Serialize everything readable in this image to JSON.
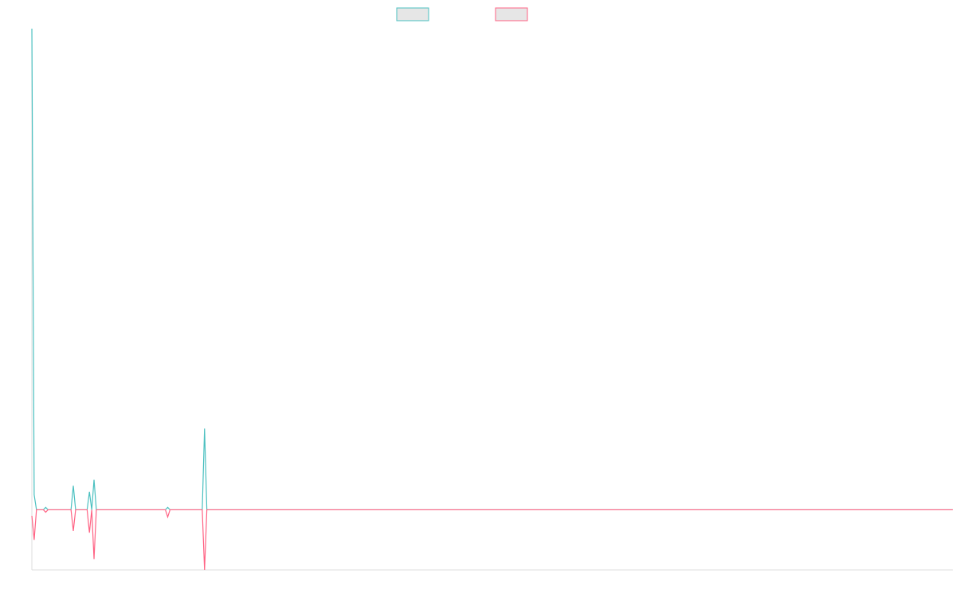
{
  "chart_data": {
    "type": "line",
    "title": "",
    "xlabel": "",
    "ylabel": "",
    "grid": false,
    "legend": "top-center",
    "x": [
      0,
      1,
      2,
      3,
      4,
      5,
      6,
      7,
      8,
      9,
      10,
      11,
      12,
      13,
      14,
      15,
      16,
      17,
      18,
      19,
      20,
      21,
      22,
      23,
      24,
      25,
      26,
      27,
      28,
      29,
      30,
      31,
      32,
      33,
      34,
      35,
      36,
      37,
      38,
      39,
      40,
      41,
      42,
      43,
      44,
      45,
      46,
      47,
      48,
      49,
      50,
      51,
      52,
      53,
      54,
      55,
      56,
      57,
      58,
      59,
      60,
      61,
      62,
      63,
      64,
      65,
      66,
      67,
      68,
      69,
      70,
      71,
      72,
      73,
      74,
      75,
      76,
      77,
      78,
      79,
      80,
      81,
      82,
      83,
      84,
      85,
      86,
      87,
      88,
      89,
      90,
      91,
      92,
      93,
      94,
      95,
      96,
      97,
      98,
      99,
      100,
      101,
      102,
      103,
      104,
      105,
      106,
      107,
      108,
      109,
      110,
      111,
      112,
      113,
      114,
      115,
      116,
      117,
      118,
      119,
      120,
      121,
      122,
      123,
      124,
      125,
      126,
      127,
      128,
      129,
      130,
      131,
      132,
      133,
      134,
      135,
      136,
      137,
      138,
      139,
      140,
      141,
      142,
      143,
      144,
      145,
      146,
      147,
      148,
      149,
      150,
      151,
      152,
      153,
      154,
      155,
      156,
      157,
      158,
      159,
      160,
      161,
      162,
      163,
      164,
      165,
      166,
      167,
      168,
      169,
      170,
      171,
      172,
      173,
      174,
      175,
      176,
      177,
      178,
      179,
      180,
      181,
      182,
      183,
      184,
      185,
      186,
      187,
      188,
      189,
      190,
      191,
      192,
      193,
      194,
      195,
      196,
      197,
      198,
      199,
      200,
      201,
      202,
      203,
      204,
      205,
      206,
      207,
      208,
      209,
      210,
      211,
      212,
      213,
      214,
      215,
      216,
      217,
      218,
      219,
      220,
      221,
      222,
      223,
      224,
      225,
      226,
      227,
      228,
      229,
      230,
      231,
      232,
      233,
      234,
      235,
      236,
      237,
      238,
      239,
      240,
      241,
      242,
      243,
      244,
      245,
      246,
      247,
      248,
      249,
      250,
      251,
      252,
      253,
      254,
      255,
      256,
      257,
      258,
      259,
      260,
      261,
      262,
      263,
      264,
      265,
      266,
      267,
      268,
      269,
      270,
      271,
      272,
      273,
      274,
      275,
      276,
      277,
      278,
      279,
      280,
      281,
      282,
      283,
      284,
      285,
      286,
      287,
      288,
      289,
      290,
      291,
      292,
      293,
      294,
      295,
      296,
      297,
      298,
      299,
      300,
      301,
      302,
      303,
      304,
      305,
      306,
      307,
      308,
      309,
      310,
      311,
      312,
      313,
      314,
      315,
      316,
      317,
      318,
      319,
      320,
      321,
      322,
      323,
      324,
      325,
      326,
      327,
      328,
      329,
      330,
      331,
      332,
      333,
      334,
      335,
      336,
      337,
      338,
      339,
      340,
      341,
      342,
      343,
      344,
      345,
      346,
      347,
      348,
      349,
      350,
      351,
      352,
      353,
      354,
      355,
      356,
      357,
      358,
      359,
      360,
      361,
      362,
      363,
      364,
      365,
      366,
      367,
      368,
      369,
      370,
      371,
      372,
      373,
      374,
      375,
      376,
      377,
      378,
      379,
      380,
      381,
      382,
      383,
      384,
      385,
      386,
      387,
      388,
      389,
      390,
      391,
      392,
      393,
      394,
      395,
      396,
      397,
      398,
      399,
      400
    ],
    "xlim": [
      0,
      400
    ],
    "ylim": [
      -100,
      800
    ],
    "series": [
      {
        "name": "",
        "color": "#4bc0c0",
        "points": [
          [
            0,
            800
          ],
          [
            1,
            25
          ],
          [
            2,
            0
          ],
          [
            5,
            0
          ],
          [
            6,
            4
          ],
          [
            7,
            0
          ],
          [
            17,
            0
          ],
          [
            18,
            40
          ],
          [
            19,
            0
          ],
          [
            24,
            0
          ],
          [
            25,
            30
          ],
          [
            26,
            0
          ],
          [
            27,
            50
          ],
          [
            28,
            0
          ],
          [
            58,
            0
          ],
          [
            59,
            4
          ],
          [
            60,
            0
          ],
          [
            74,
            0
          ],
          [
            75,
            135
          ],
          [
            76,
            0
          ],
          [
            400,
            0
          ]
        ]
      },
      {
        "name": "",
        "color": "#ff6384",
        "points": [
          [
            0,
            -10
          ],
          [
            1,
            -50
          ],
          [
            2,
            0
          ],
          [
            5,
            0
          ],
          [
            6,
            -4
          ],
          [
            7,
            0
          ],
          [
            17,
            0
          ],
          [
            18,
            -35
          ],
          [
            19,
            0
          ],
          [
            24,
            0
          ],
          [
            25,
            -38
          ],
          [
            26,
            0
          ],
          [
            27,
            -82
          ],
          [
            28,
            0
          ],
          [
            58,
            0
          ],
          [
            59,
            -12
          ],
          [
            60,
            0
          ],
          [
            74,
            0
          ],
          [
            75,
            -100
          ],
          [
            76,
            0
          ],
          [
            400,
            0
          ]
        ]
      }
    ]
  }
}
